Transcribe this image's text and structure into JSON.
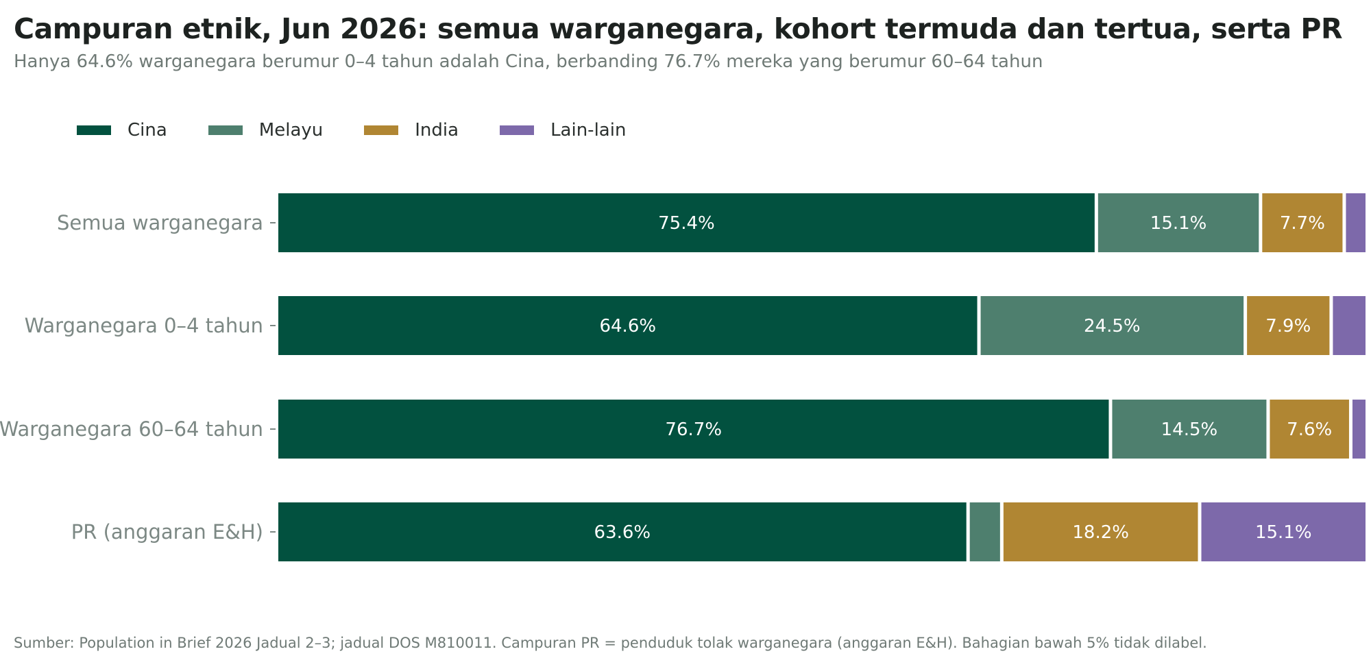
{
  "title": "Campuran etnik, Jun 2026: semua warganegara, kohort termuda dan tertua, serta PR",
  "subtitle": "Hanya 64.6% warganegara berumur 0–4 tahun adalah Cina, berbanding 76.7% mereka yang berumur 60–64 tahun",
  "footnote": "Sumber: Population in Brief 2026 Jadual 2–3; jadual DOS M810011. Campuran PR = penduduk tolak warganegara (anggaran E&H). Bahagian bawah 5% tidak dilabel.",
  "colors": {
    "cina": "#02513f",
    "melayu": "#4e7f6e",
    "india": "#b08633",
    "lain": "#7d69aa",
    "category_label": "#7c8884",
    "bar_label": "#ffffff"
  },
  "chart_data": {
    "type": "bar",
    "orientation": "horizontal",
    "stacked": true,
    "categories": [
      "Semua warganegara",
      "Warganegara 0–4 tahun",
      "Warganegara 60–64 tahun",
      "PR (anggaran E&H)"
    ],
    "series": [
      {
        "name": "Cina",
        "color_key": "cina",
        "values": [
          75.4,
          64.6,
          76.7,
          63.6
        ]
      },
      {
        "name": "Melayu",
        "color_key": "melayu",
        "values": [
          15.1,
          24.5,
          14.5,
          3.1
        ]
      },
      {
        "name": "India",
        "color_key": "india",
        "values": [
          7.7,
          7.9,
          7.6,
          18.2
        ]
      },
      {
        "name": "Lain-lain",
        "color_key": "lain",
        "values": [
          1.8,
          3.0,
          1.2,
          15.1
        ]
      }
    ],
    "xlim": [
      0,
      100
    ],
    "label_threshold": 5,
    "legend_position": "top-left",
    "grid": false
  }
}
